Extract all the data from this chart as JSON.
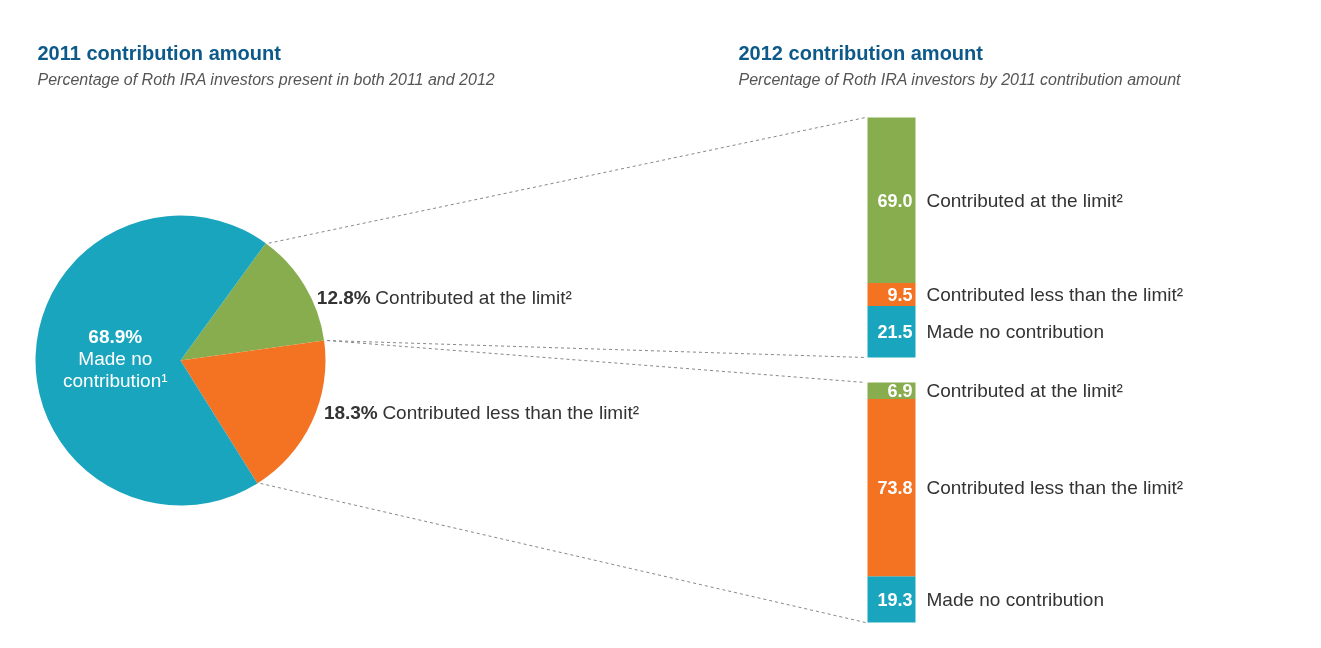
{
  "chart_data": [
    {
      "type": "pie",
      "title": "2011 contribution amount",
      "subtitle": "Percentage of Roth IRA investors present in both 2011 and 2012",
      "categories": [
        "Contributed at the limit²",
        "Contributed less than the limit²",
        "Made no contribution¹"
      ],
      "values": [
        12.8,
        18.3,
        68.9
      ],
      "colors": [
        "#87ad4f",
        "#f47322",
        "#1aa5bf"
      ],
      "value_labels": [
        "12.8%",
        "18.3%",
        "68.9%"
      ]
    },
    {
      "type": "bar",
      "stacked": true,
      "title": "2012 contribution amount",
      "subtitle": "Percentage of Roth IRA investors by 2011 contribution amount",
      "categories": [
        null
      ],
      "series": [
        {
          "name": "Made no contribution",
          "color": "#1aa5bf",
          "values": [
            21.5
          ],
          "value_labels": [
            "21.5"
          ]
        },
        {
          "name": "Contributed less than the limit²",
          "color": "#f47322",
          "values": [
            9.5
          ],
          "value_labels": [
            "9.5"
          ]
        },
        {
          "name": "Contributed at the limit²",
          "color": "#87ad4f",
          "values": [
            69.0
          ],
          "value_labels": [
            "69.0"
          ]
        }
      ]
    },
    {
      "type": "bar",
      "stacked": true,
      "categories": [
        null
      ],
      "series": [
        {
          "name": "Made no contribution",
          "color": "#1aa5bf",
          "values": [
            19.3
          ],
          "value_labels": [
            "19.3"
          ]
        },
        {
          "name": "Contributed less than the limit²",
          "color": "#f47322",
          "values": [
            73.8
          ],
          "value_labels": [
            "73.8"
          ]
        },
        {
          "name": "Contributed at the limit²",
          "color": "#87ad4f",
          "values": [
            6.9
          ],
          "value_labels": [
            "6.9"
          ]
        }
      ]
    }
  ]
}
